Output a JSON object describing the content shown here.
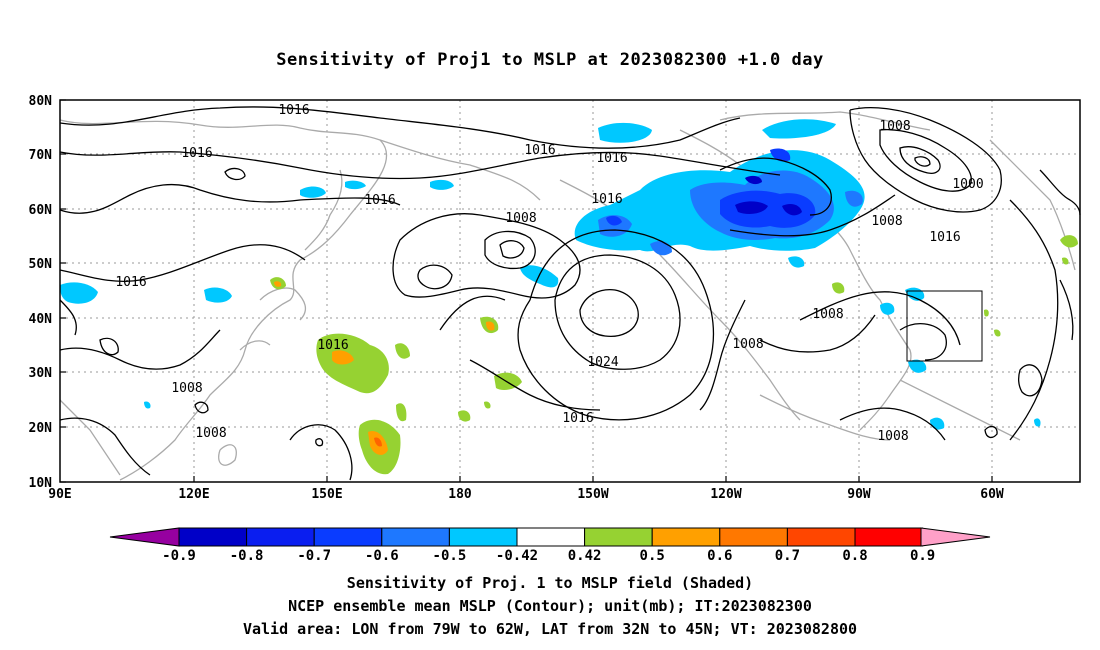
{
  "title": "Sensitivity of Proj1 to MSLP at 2023082300 +1.0 day",
  "map": {
    "lat_labels": [
      "80N",
      "70N",
      "60N",
      "50N",
      "40N",
      "30N",
      "20N",
      "10N"
    ],
    "lon_labels": [
      "90E",
      "120E",
      "150E",
      "180",
      "150W",
      "120W",
      "90W",
      "60W"
    ],
    "contour_labels": [
      "1016",
      "1016",
      "1016",
      "1016",
      "1016",
      "1016",
      "1016",
      "1016",
      "1016",
      "1016",
      "1008",
      "1008",
      "1008",
      "1008",
      "1008",
      "1008",
      "1008",
      "1008",
      "1000",
      "1024"
    ],
    "colors": {
      "dark_blue": "#0000c8",
      "blue": "#0a3cff",
      "mid_blue": "#1e78ff",
      "light_blue": "#00c8ff",
      "green": "#96d232",
      "orange": "#ffa000",
      "dark_orange": "#ff6400",
      "contour": "#000000",
      "coast": "#aaaaaa"
    }
  },
  "colorbar": {
    "labels": [
      "-0.9",
      "-0.8",
      "-0.7",
      "-0.6",
      "-0.5",
      "-0.42",
      "0.42",
      "0.5",
      "0.6",
      "0.7",
      "0.8",
      "0.9"
    ],
    "colors": [
      "#9600a0",
      "#0000c8",
      "#0a1ef0",
      "#0a3cff",
      "#1e78ff",
      "#00c8ff",
      "#ffffff",
      "#96d232",
      "#ffa000",
      "#ff7800",
      "#ff4600",
      "#ff0000",
      "#ffa0c8"
    ]
  },
  "footer": {
    "line1": "Sensitivity of Proj. 1 to MSLP field (Shaded)",
    "line2": "NCEP ensemble mean MSLP (Contour); unit(mb); IT:2023082300",
    "line3": "Valid area: LON from 79W to 62W, LAT from 32N to 45N; VT: 2023082800"
  }
}
